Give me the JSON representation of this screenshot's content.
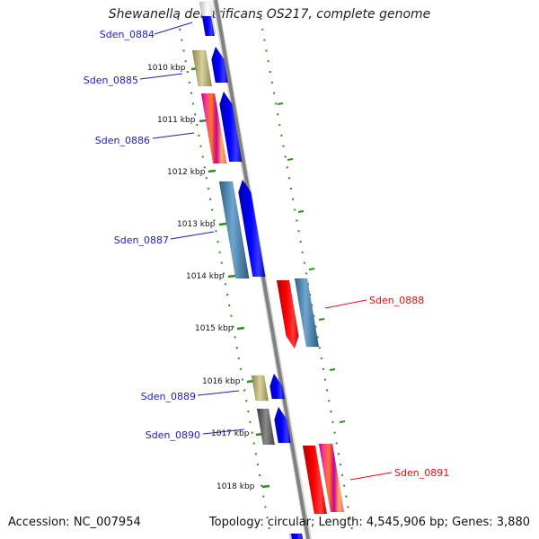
{
  "title": "Shewanella denitrificans OS217, complete genome",
  "footer": {
    "accession": "Accession: NC_007954",
    "topology": "Topology: circular; Length: 4,545,906 bp; Genes: 3,880"
  },
  "colors": {
    "backbone": "#808080",
    "tick": "#2e8b22",
    "forward_label": "#1c1cc8",
    "reverse_label": "#e01010",
    "gene_blue": "#0000ff",
    "gene_red": "#ff0000"
  },
  "kbp_ticks": [
    "1010 kbp",
    "1011 kbp",
    "1012 kbp",
    "1013 kbp",
    "1014 kbp",
    "1015 kbp",
    "1016 kbp",
    "1017 kbp",
    "1018 kbp"
  ],
  "genes": [
    {
      "name": "Sden_0884",
      "strand": "forward"
    },
    {
      "name": "Sden_0885",
      "strand": "forward"
    },
    {
      "name": "Sden_0886",
      "strand": "forward"
    },
    {
      "name": "Sden_0887",
      "strand": "forward"
    },
    {
      "name": "Sden_0888",
      "strand": "reverse"
    },
    {
      "name": "Sden_0889",
      "strand": "forward"
    },
    {
      "name": "Sden_0890",
      "strand": "forward"
    },
    {
      "name": "Sden_0891",
      "strand": "reverse"
    }
  ]
}
